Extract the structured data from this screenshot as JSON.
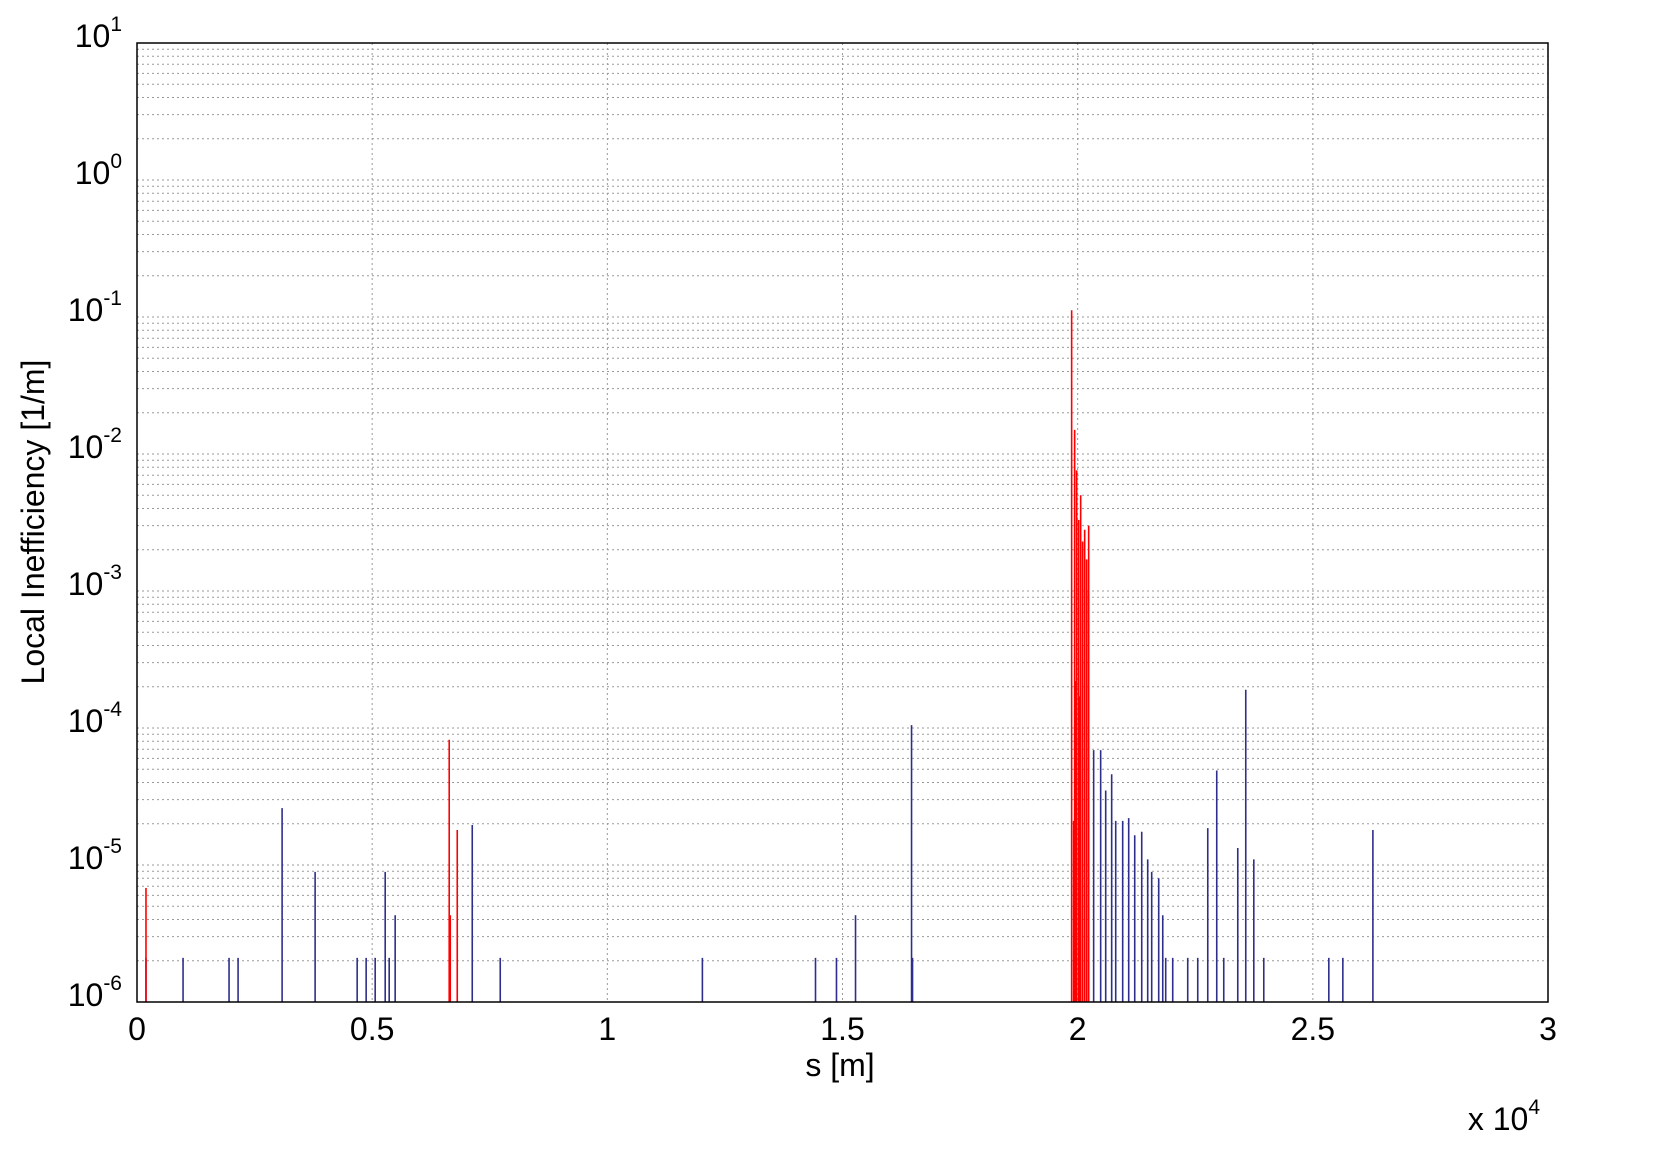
{
  "chart_data": {
    "type": "stem",
    "xlabel": "s [m]",
    "ylabel": "Local Inefficiency [1/m]",
    "x_multiplier": "x 10^4",
    "xlim": [
      0,
      30000
    ],
    "xticks": [
      {
        "value": 0,
        "label": "0"
      },
      {
        "value": 5000,
        "label": "0.5"
      },
      {
        "value": 10000,
        "label": "1"
      },
      {
        "value": 15000,
        "label": "1.5"
      },
      {
        "value": 20000,
        "label": "2"
      },
      {
        "value": 25000,
        "label": "2.5"
      },
      {
        "value": 30000,
        "label": "3"
      }
    ],
    "ylim": [
      1e-06,
      10
    ],
    "yticks": [
      {
        "value": 10,
        "label": "10^1"
      },
      {
        "value": 1,
        "label": "10^0"
      },
      {
        "value": 0.1,
        "label": "10^-1"
      },
      {
        "value": 0.01,
        "label": "10^-2"
      },
      {
        "value": 0.001,
        "label": "10^-3"
      },
      {
        "value": 0.0001,
        "label": "10^-4"
      },
      {
        "value": 1e-05,
        "label": "10^-5"
      },
      {
        "value": 1e-06,
        "label": "10^-6"
      }
    ],
    "log_y": true,
    "grid": true,
    "minor_grid": true,
    "series": [
      {
        "color": "#2e2e8c",
        "x": [
          191,
          979,
          1957,
          2149,
          3085,
          3787,
          4681,
          4872,
          5064,
          5277,
          5362,
          5489,
          7128,
          7723,
          12021,
          14426,
          14872,
          15277,
          16468,
          16489,
          20234,
          20340,
          20489,
          20596,
          20723,
          20809,
          20957,
          21085,
          21213,
          21362,
          21489,
          21574,
          21723,
          21809,
          21872,
          22021,
          22340,
          22553,
          22766,
          22957,
          23106,
          23404,
          23574,
          23745,
          23957,
          25340,
          25638,
          26277
        ],
        "values": [
          2.1e-06,
          2.1e-06,
          2.1e-06,
          2.1e-06,
          2.6e-05,
          8.9e-06,
          2.1e-06,
          2.1e-06,
          2.1e-06,
          8.9e-06,
          2.1e-06,
          4.3e-06,
          1.96e-05,
          2.1e-06,
          2.1e-06,
          2.1e-06,
          2.1e-06,
          4.3e-06,
          0.000105,
          2.1e-06,
          0.001,
          6.9e-05,
          6.9e-05,
          3.5e-05,
          4.6e-05,
          2.1e-05,
          2.1e-05,
          2.2e-05,
          1.65e-05,
          1.75e-05,
          1.1e-05,
          8.9e-06,
          8e-06,
          4.3e-06,
          2.1e-06,
          2.1e-06,
          2.1e-06,
          2.1e-06,
          1.86e-05,
          4.9e-05,
          2.1e-06,
          1.33e-05,
          0.00019,
          1.1e-05,
          2.1e-06,
          2.1e-06,
          2.1e-06,
          1.8e-05
        ]
      },
      {
        "color": "#ff0000",
        "x": [
          191,
          6638,
          6660,
          6809,
          19872,
          19915,
          19936,
          19957,
          19979,
          20021,
          20043,
          20064,
          20106,
          20149,
          20191,
          20234
        ],
        "values": [
          6.8e-06,
          8.2e-05,
          4.3e-06,
          1.8e-05,
          0.112,
          2.1e-05,
          0.015,
          0.00022,
          0.0076,
          0.0033,
          0.00017,
          0.005,
          0.0023,
          0.0028,
          0.0017,
          0.003
        ]
      }
    ]
  }
}
